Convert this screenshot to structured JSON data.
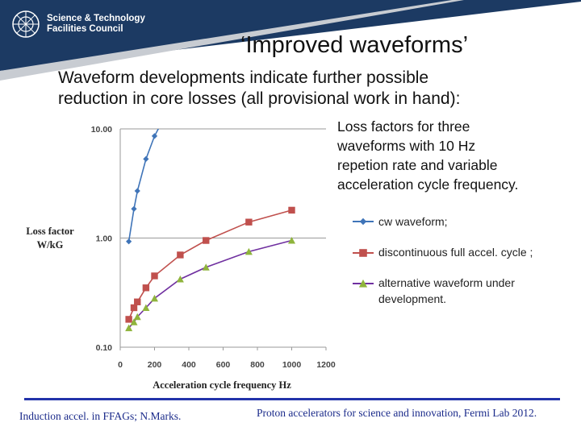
{
  "header": {
    "org_line1": "Science & Technology",
    "org_line2": "Facilities Council"
  },
  "slide": {
    "title": "‘Improved waveforms’",
    "intro_line1": "Waveform developments indicate further possible",
    "intro_line2": "reduction in core losses (all provisional work in hand):",
    "desc_line1": "Loss factors for  three",
    "desc_line2": "waveforms with 10 Hz",
    "desc_line3": "repetion rate and variable",
    "desc_line4": "acceleration cycle frequency."
  },
  "footer": {
    "left": "Induction accel. in FFAGs; N.Marks.",
    "right": "Proton accelerators for science and innovation, Fermi Lab 2012."
  },
  "colors": {
    "navy": "#1c3a63",
    "blue_series": "#3f74b8",
    "red_series": "#c0504d",
    "green_series": "#8fb43c",
    "purple_line": "#7030a0",
    "footer": "#2233aa"
  },
  "chart_data": {
    "type": "line",
    "title": "",
    "xlabel": "Acceleration cycle frequency Hz",
    "ylabel": "Loss factor W/kG",
    "ylabel_line1": "Loss factor",
    "ylabel_line2": "W/kG",
    "y_scale": "log",
    "xlim": [
      0,
      1200
    ],
    "ylim": [
      0.1,
      10
    ],
    "x_ticks": [
      0,
      200,
      400,
      600,
      800,
      1000,
      1200
    ],
    "y_ticks": [
      0.1,
      1,
      10
    ],
    "y_tick_labels": [
      "0.10",
      "1.00",
      "10.00"
    ],
    "grid": "horizontal major",
    "legend_position": "right",
    "series": [
      {
        "name": "cw waveform;",
        "marker": "diamond",
        "color": "#3f74b8",
        "line_color": "#3f74b8",
        "x": [
          50,
          80,
          100,
          150,
          200,
          260
        ],
        "y": [
          0.93,
          1.85,
          2.7,
          5.3,
          8.6,
          13
        ]
      },
      {
        "name": "discontinuous full accel. cycle ;",
        "marker": "square",
        "color": "#c0504d",
        "line_color": "#c0504d",
        "x": [
          50,
          80,
          100,
          150,
          200,
          350,
          500,
          750,
          1000
        ],
        "y": [
          0.18,
          0.23,
          0.26,
          0.35,
          0.45,
          0.7,
          0.95,
          1.4,
          1.8
        ]
      },
      {
        "name": "alternative waveform under development.",
        "name_line1": "alternative waveform under",
        "name_line2": "development.",
        "marker": "triangle",
        "color": "#8fb43c",
        "line_color": "#7030a0",
        "x": [
          50,
          80,
          100,
          150,
          200,
          350,
          500,
          750,
          1000
        ],
        "y": [
          0.15,
          0.17,
          0.19,
          0.23,
          0.28,
          0.42,
          0.54,
          0.75,
          0.95
        ]
      }
    ]
  }
}
